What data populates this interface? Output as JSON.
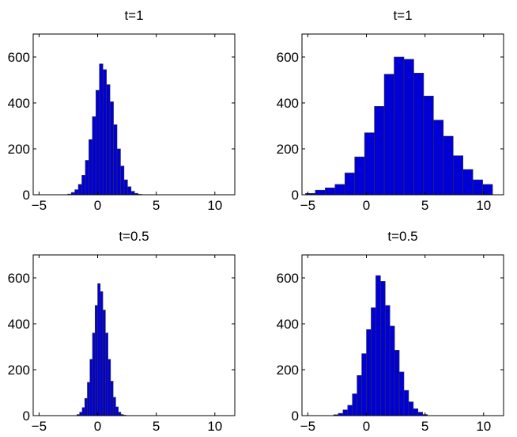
{
  "chart_data": [
    {
      "type": "bar",
      "title": "t=1",
      "xlim": [
        -5.5,
        11.7
      ],
      "ylim": [
        0,
        700
      ],
      "xticks": [
        -5,
        0,
        5,
        10
      ],
      "yticks": [
        0,
        200,
        400,
        600
      ],
      "bin_width": 0.3,
      "x": [
        -2.4,
        -2.1,
        -1.8,
        -1.5,
        -1.2,
        -0.9,
        -0.6,
        -0.3,
        0.0,
        0.3,
        0.6,
        0.9,
        1.2,
        1.5,
        1.8,
        2.1,
        2.4,
        2.7,
        3.0,
        3.3,
        3.6
      ],
      "values": [
        3,
        10,
        22,
        45,
        85,
        150,
        240,
        340,
        455,
        570,
        545,
        480,
        405,
        305,
        200,
        125,
        65,
        35,
        15,
        6,
        2
      ]
    },
    {
      "type": "bar",
      "title": "t=1",
      "xlim": [
        -5.5,
        11.7
      ],
      "ylim": [
        0,
        700
      ],
      "xticks": [
        -5,
        0,
        5,
        10
      ],
      "yticks": [
        0,
        200,
        400,
        600
      ],
      "bin_width": 0.84,
      "x": [
        -4.78,
        -3.94,
        -3.1,
        -2.26,
        -1.42,
        -0.58,
        0.26,
        1.1,
        1.94,
        2.78,
        3.62,
        4.46,
        5.3,
        6.14,
        6.98,
        7.82,
        8.66,
        9.5,
        10.34
      ],
      "values": [
        6,
        20,
        30,
        45,
        95,
        165,
        270,
        385,
        525,
        600,
        590,
        530,
        430,
        325,
        255,
        170,
        110,
        65,
        45
      ]
    },
    {
      "type": "bar",
      "title": "t=0.5",
      "xlim": [
        -5.5,
        11.7
      ],
      "ylim": [
        0,
        700
      ],
      "xticks": [
        -5,
        0,
        5,
        10
      ],
      "yticks": [
        0,
        200,
        400,
        600
      ],
      "bin_width": 0.22,
      "x": [
        -1.65,
        -1.43,
        -1.21,
        -0.99,
        -0.77,
        -0.55,
        -0.33,
        -0.11,
        0.11,
        0.33,
        0.55,
        0.77,
        0.99,
        1.21,
        1.43,
        1.65,
        1.87,
        2.09,
        2.31
      ],
      "values": [
        5,
        15,
        35,
        75,
        145,
        245,
        360,
        480,
        575,
        540,
        460,
        360,
        245,
        150,
        80,
        38,
        15,
        5,
        2
      ]
    },
    {
      "type": "bar",
      "title": "t=0.5",
      "xlim": [
        -5.5,
        11.7
      ],
      "ylim": [
        0,
        700
      ],
      "xticks": [
        -5,
        0,
        5,
        10
      ],
      "yticks": [
        0,
        200,
        400,
        600
      ],
      "bin_width": 0.4,
      "x": [
        -2.6,
        -2.2,
        -1.8,
        -1.4,
        -1.0,
        -0.6,
        -0.2,
        0.2,
        0.6,
        1.0,
        1.4,
        1.8,
        2.2,
        2.6,
        3.0,
        3.4,
        3.8,
        4.2,
        4.6,
        5.0
      ],
      "values": [
        4,
        10,
        25,
        45,
        95,
        175,
        270,
        375,
        470,
        610,
        585,
        480,
        390,
        285,
        190,
        110,
        60,
        30,
        15,
        5
      ]
    }
  ]
}
